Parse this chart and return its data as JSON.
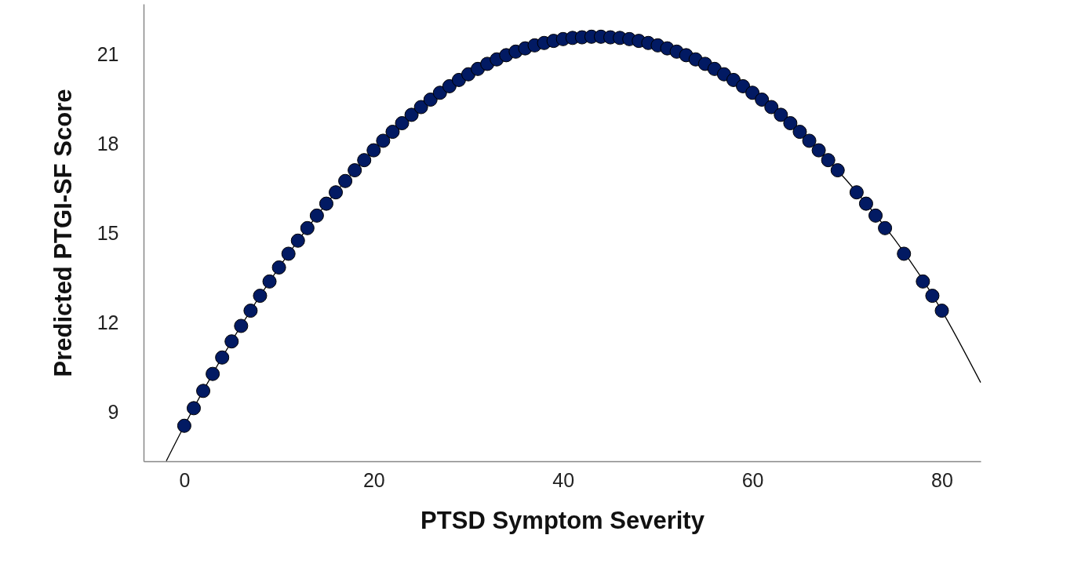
{
  "chart_data": {
    "type": "scatter",
    "xlabel": "PTSD Symptom Severity",
    "ylabel": "Predicted PTGI-SF Score",
    "xlim": [
      -4.3,
      84.1
    ],
    "ylim": [
      7.36,
      22.7
    ],
    "xticks": [
      0,
      20,
      40,
      60,
      80
    ],
    "yticks": [
      9,
      12,
      15,
      18,
      21
    ],
    "grid": false,
    "marker": "circle",
    "series": [
      {
        "type": "line",
        "marker": "none",
        "color": "#000000",
        "x": [
          -1.9,
          0,
          10,
          20,
          30,
          40,
          43.5,
          50,
          60,
          70,
          80,
          84.1
        ],
        "values": [
          7.37,
          8.55,
          13.86,
          17.79,
          20.34,
          21.52,
          21.6,
          21.31,
          19.72,
          16.76,
          12.41,
          10.0
        ]
      },
      {
        "color": "#021a63",
        "x": [
          0,
          1,
          2,
          3,
          4,
          5,
          6,
          7,
          8,
          9,
          10,
          11,
          12,
          13,
          14,
          15,
          16,
          17,
          18,
          19,
          20,
          21,
          22,
          23,
          24,
          25,
          26,
          27,
          28,
          29,
          30,
          31,
          32,
          33,
          34,
          35,
          36,
          37,
          38,
          39,
          40,
          41,
          42,
          43,
          44,
          45,
          46,
          47,
          48,
          49,
          50,
          51,
          52,
          53,
          54,
          55,
          56,
          57,
          58,
          59,
          60,
          61,
          62,
          63,
          64,
          65,
          66,
          67,
          68,
          69,
          71,
          72,
          73,
          74,
          76,
          78,
          79,
          80
        ],
        "values": [
          8.55,
          9.14,
          9.72,
          10.29,
          10.84,
          11.38,
          11.9,
          12.41,
          12.91,
          13.39,
          13.86,
          14.32,
          14.76,
          15.18,
          15.6,
          16.0,
          16.38,
          16.76,
          17.12,
          17.46,
          17.79,
          18.11,
          18.41,
          18.7,
          18.98,
          19.24,
          19.49,
          19.72,
          19.94,
          20.15,
          20.34,
          20.52,
          20.69,
          20.84,
          20.98,
          21.1,
          21.21,
          21.31,
          21.39,
          21.46,
          21.52,
          21.56,
          21.58,
          21.6,
          21.6,
          21.58,
          21.56,
          21.52,
          21.46,
          21.39,
          21.31,
          21.21,
          21.1,
          20.98,
          20.84,
          20.69,
          20.52,
          20.34,
          20.15,
          19.94,
          19.72,
          19.49,
          19.24,
          18.98,
          18.7,
          18.41,
          18.11,
          17.79,
          17.46,
          17.12,
          16.38,
          16.0,
          15.6,
          15.18,
          14.32,
          13.39,
          12.91,
          12.41
        ]
      }
    ]
  }
}
